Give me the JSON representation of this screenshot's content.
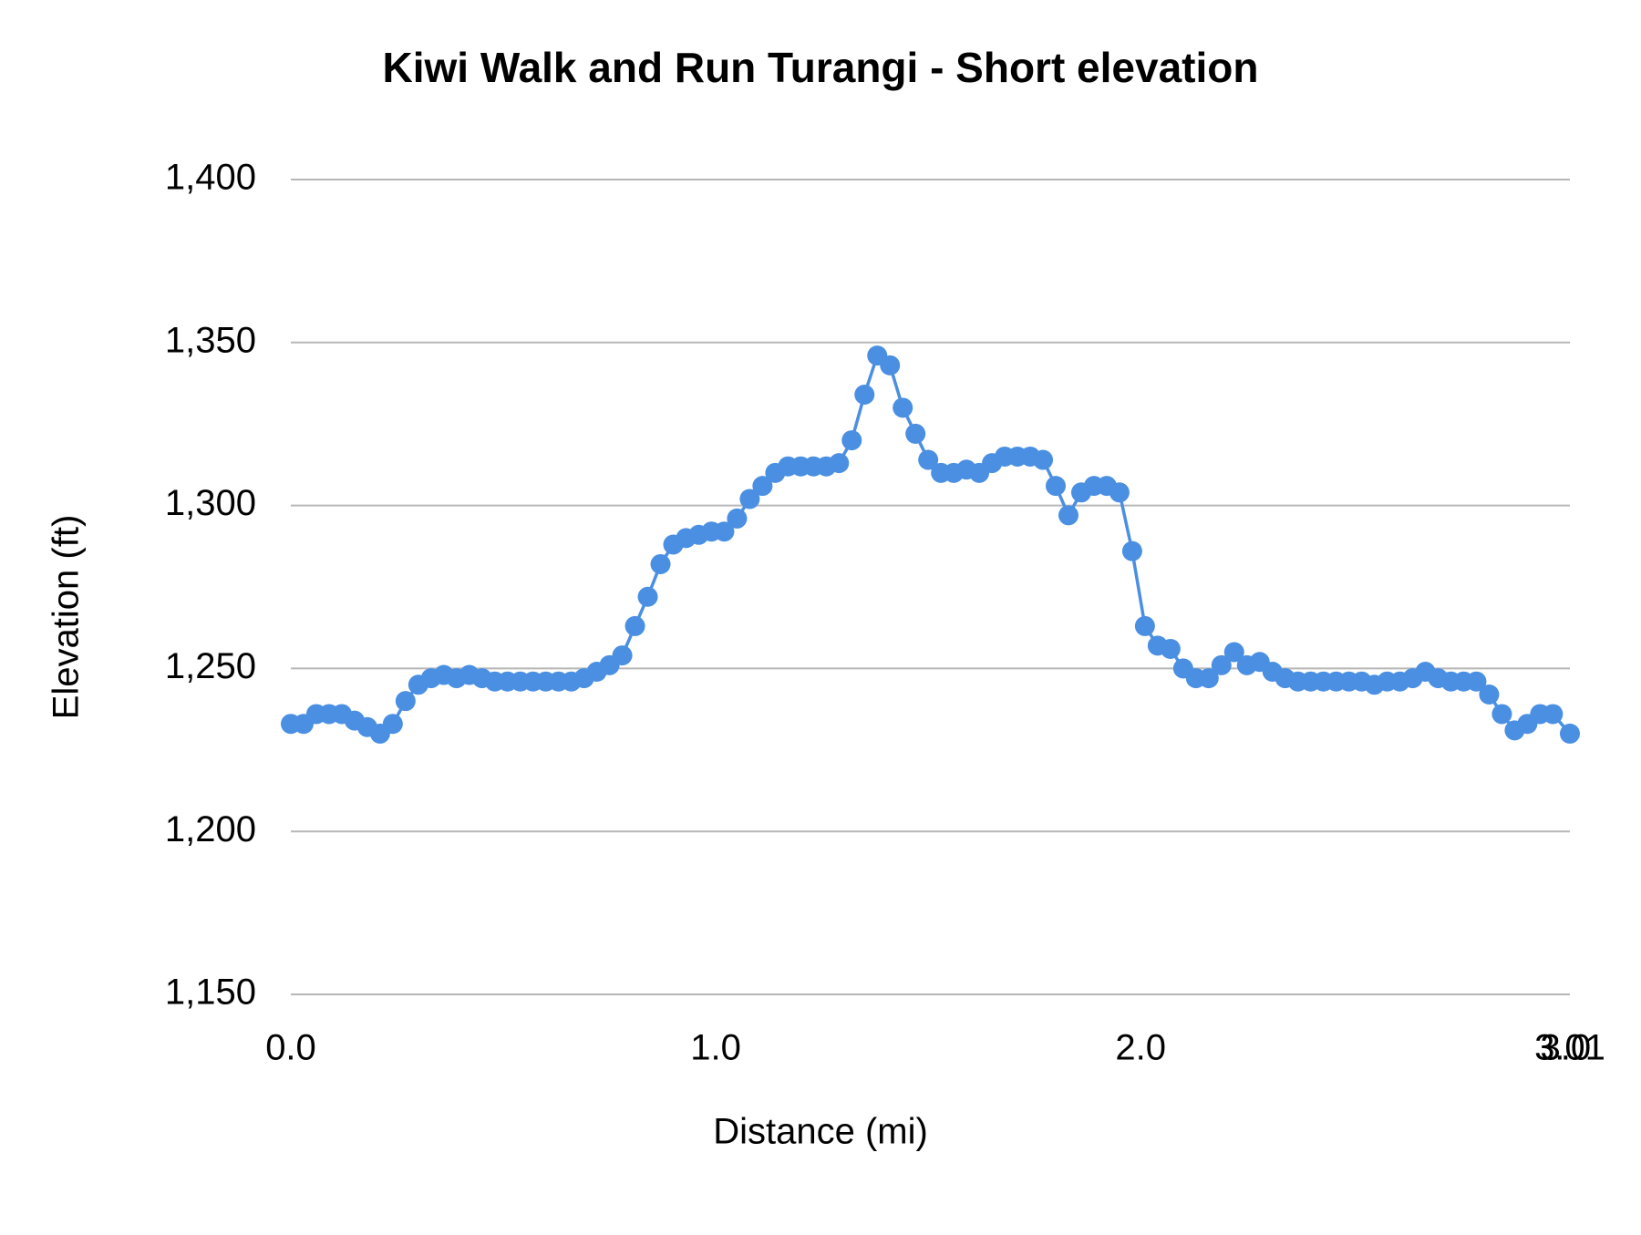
{
  "chart_data": {
    "type": "line",
    "title": "Kiwi Walk and Run Turangi - Short elevation",
    "x_label": "Distance (mi)",
    "y_label": "Elevation (ft)",
    "x": [
      0,
      0.03,
      0.06,
      0.09,
      0.12,
      0.15,
      0.18,
      0.21,
      0.24,
      0.27,
      0.3,
      0.33,
      0.36,
      0.39,
      0.42,
      0.45,
      0.48,
      0.51,
      0.54,
      0.57,
      0.6,
      0.63,
      0.66,
      0.69,
      0.72,
      0.75,
      0.78,
      0.81,
      0.84,
      0.87,
      0.9,
      0.93,
      0.96,
      0.99,
      1.02,
      1.05,
      1.08,
      1.11,
      1.14,
      1.17,
      1.2,
      1.23,
      1.26,
      1.29,
      1.32,
      1.35,
      1.38,
      1.41,
      1.44,
      1.47,
      1.5,
      1.53,
      1.56,
      1.59,
      1.62,
      1.65,
      1.68,
      1.71,
      1.74,
      1.77,
      1.8,
      1.83,
      1.86,
      1.89,
      1.92,
      1.95,
      1.98,
      2.01,
      2.04,
      2.07,
      2.1,
      2.13,
      2.16,
      2.19,
      2.22,
      2.25,
      2.28,
      2.31,
      2.34,
      2.37,
      2.4,
      2.43,
      2.46,
      2.49,
      2.52,
      2.55,
      2.58,
      2.61,
      2.64,
      2.67,
      2.7,
      2.73,
      2.76,
      2.79,
      2.82,
      2.85,
      2.88,
      2.91,
      2.94,
      2.97,
      3.01
    ],
    "series": [
      {
        "name": "Elevation",
        "color": "#4a8fe2",
        "values": [
          1233,
          1233,
          1236,
          1236,
          1236,
          1234,
          1232,
          1230,
          1233,
          1240,
          1245,
          1247,
          1248,
          1247,
          1248,
          1247,
          1246,
          1246,
          1246,
          1246,
          1246,
          1246,
          1246,
          1247,
          1249,
          1251,
          1254,
          1263,
          1272,
          1282,
          1288,
          1290,
          1291,
          1292,
          1292,
          1296,
          1302,
          1306,
          1310,
          1312,
          1312,
          1312,
          1312,
          1313,
          1320,
          1334,
          1346,
          1343,
          1330,
          1322,
          1314,
          1310,
          1310,
          1311,
          1310,
          1313,
          1315,
          1315,
          1315,
          1314,
          1306,
          1297,
          1304,
          1306,
          1306,
          1304,
          1286,
          1263,
          1257,
          1256,
          1250,
          1247,
          1247,
          1251,
          1255,
          1251,
          1252,
          1249,
          1247,
          1246,
          1246,
          1246,
          1246,
          1246,
          1246,
          1245,
          1246,
          1246,
          1247,
          1249,
          1247,
          1246,
          1246,
          1246,
          1242,
          1236,
          1231,
          1233,
          1236,
          1236,
          1230
        ]
      }
    ],
    "xlim": [
      0,
      3.01
    ],
    "xticks": [
      {
        "value": 0,
        "label": "0.0"
      },
      {
        "value": 1,
        "label": "1.0"
      },
      {
        "value": 2,
        "label": "2.0"
      },
      {
        "value": 3,
        "label": "3.0"
      },
      {
        "value": 3.01,
        "label": "3.01"
      }
    ],
    "ylim": [
      1150,
      1400
    ],
    "yticks": [
      {
        "value": 1150,
        "label": "1,150"
      },
      {
        "value": 1200,
        "label": "1,200"
      },
      {
        "value": 1250,
        "label": "1,250"
      },
      {
        "value": 1300,
        "label": "1,300"
      },
      {
        "value": 1350,
        "label": "1,350"
      },
      {
        "value": 1400,
        "label": "1,400"
      }
    ],
    "grid": true
  }
}
